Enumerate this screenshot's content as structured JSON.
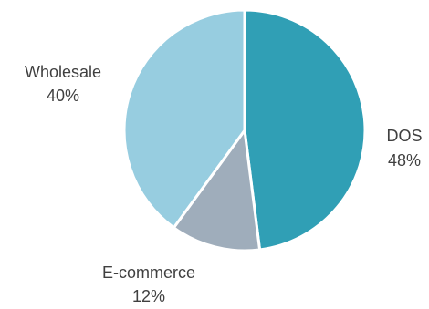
{
  "chart_data": {
    "type": "pie",
    "slices": [
      {
        "label": "DOS",
        "value": 48,
        "value_label": "48%",
        "color": "#309fb5"
      },
      {
        "label": "E-commerce",
        "value": 12,
        "value_label": "12%",
        "color": "#9fadbb"
      },
      {
        "label": "Wholesale",
        "value": 40,
        "value_label": "40%",
        "color": "#97cde0"
      }
    ],
    "start_angle": "12 o'clock",
    "direction": "clockwise",
    "slice_border_color": "#ffffff",
    "label_color": "#404040",
    "legend": "none"
  }
}
